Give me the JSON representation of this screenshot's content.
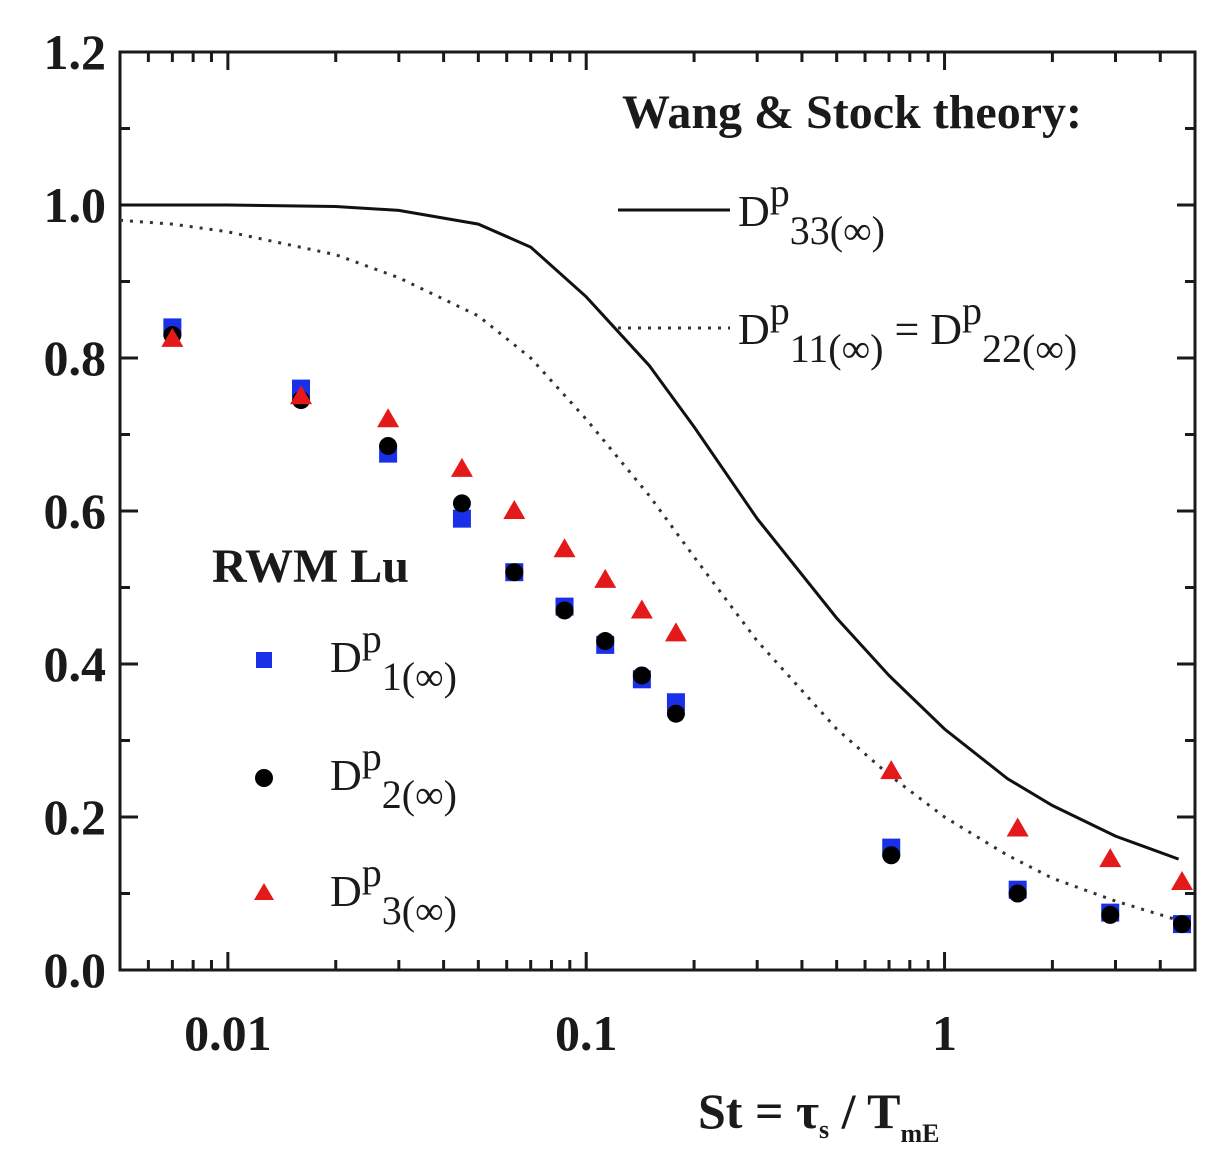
{
  "chart_data": {
    "type": "scatter",
    "xscale": "log",
    "xlim": [
      0.005,
      5.0
    ],
    "ylim": [
      0.0,
      1.2
    ],
    "xticks": [
      0.01,
      0.1,
      1
    ],
    "xtick_labels": [
      "0.01",
      "0.1",
      "1"
    ],
    "yticks": [
      0.0,
      0.2,
      0.4,
      0.6,
      0.8,
      1.0,
      1.2
    ],
    "ytick_labels": [
      "0.0",
      "0.2",
      "0.4",
      "0.6",
      "0.8",
      "1.0",
      "1.2"
    ],
    "xlabel": {
      "main": "St = τ",
      "sub1": "s",
      "mid": " / T",
      "sub2": "mE"
    },
    "ylabel": "",
    "theory_title": "Wang & Stock theory:",
    "rwm_title": "RWM Lu",
    "series": [
      {
        "name": "Dp33(∞)",
        "label": {
          "base": "D",
          "sup": "p",
          "sub": "33(∞)"
        },
        "kind": "line",
        "style": "solid",
        "color": "#111111",
        "x": [
          0.005,
          0.01,
          0.02,
          0.03,
          0.05,
          0.07,
          0.1,
          0.15,
          0.2,
          0.3,
          0.5,
          0.7,
          1.0,
          1.5,
          2.0,
          3.0,
          4.5
        ],
        "y": [
          1.0,
          1.0,
          0.998,
          0.993,
          0.975,
          0.945,
          0.88,
          0.79,
          0.71,
          0.59,
          0.46,
          0.385,
          0.315,
          0.25,
          0.215,
          0.175,
          0.145
        ]
      },
      {
        "name": "Dp11(∞) = Dp22(∞)",
        "label": {
          "base1": "D",
          "sup1": "p",
          "sub1": "11(∞)",
          "eq": " = D",
          "sup2": "p",
          "sub2": "22(∞)"
        },
        "kind": "line",
        "style": "dotted",
        "color": "#333333",
        "x": [
          0.005,
          0.007,
          0.01,
          0.02,
          0.03,
          0.05,
          0.07,
          0.1,
          0.15,
          0.2,
          0.3,
          0.5,
          0.7,
          1.0,
          1.5,
          2.0,
          3.0,
          4.5
        ],
        "y": [
          0.98,
          0.975,
          0.965,
          0.935,
          0.905,
          0.855,
          0.8,
          0.72,
          0.62,
          0.54,
          0.43,
          0.315,
          0.255,
          0.2,
          0.15,
          0.12,
          0.09,
          0.065
        ]
      },
      {
        "name": "Dp1(∞)",
        "label": {
          "base": "D",
          "sup": "p",
          "sub": "1(∞)"
        },
        "kind": "marker",
        "marker": "square",
        "color": "#1a2fe8",
        "x": [
          0.007,
          0.016,
          0.028,
          0.045,
          0.063,
          0.087,
          0.113,
          0.143,
          0.178,
          0.71,
          1.6,
          2.9,
          4.6
        ],
        "y": [
          0.84,
          0.76,
          0.675,
          0.59,
          0.52,
          0.475,
          0.425,
          0.38,
          0.35,
          0.16,
          0.105,
          0.075,
          0.06
        ]
      },
      {
        "name": "Dp2(∞)",
        "label": {
          "base": "D",
          "sup": "p",
          "sub": "2(∞)"
        },
        "kind": "marker",
        "marker": "circle",
        "color": "#000000",
        "x": [
          0.007,
          0.016,
          0.028,
          0.045,
          0.063,
          0.087,
          0.113,
          0.143,
          0.178,
          0.71,
          1.6,
          2.9,
          4.6
        ],
        "y": [
          0.83,
          0.745,
          0.685,
          0.61,
          0.52,
          0.47,
          0.43,
          0.385,
          0.335,
          0.15,
          0.1,
          0.072,
          0.06
        ]
      },
      {
        "name": "Dp3(∞)",
        "label": {
          "base": "D",
          "sup": "p",
          "sub": "3(∞)"
        },
        "kind": "marker",
        "marker": "triangle",
        "color": "#e41a1a",
        "x": [
          0.007,
          0.016,
          0.028,
          0.045,
          0.063,
          0.087,
          0.113,
          0.143,
          0.178,
          0.71,
          1.6,
          2.9,
          4.6
        ],
        "y": [
          0.825,
          0.75,
          0.72,
          0.655,
          0.6,
          0.55,
          0.51,
          0.47,
          0.44,
          0.26,
          0.185,
          0.145,
          0.115
        ]
      }
    ]
  }
}
